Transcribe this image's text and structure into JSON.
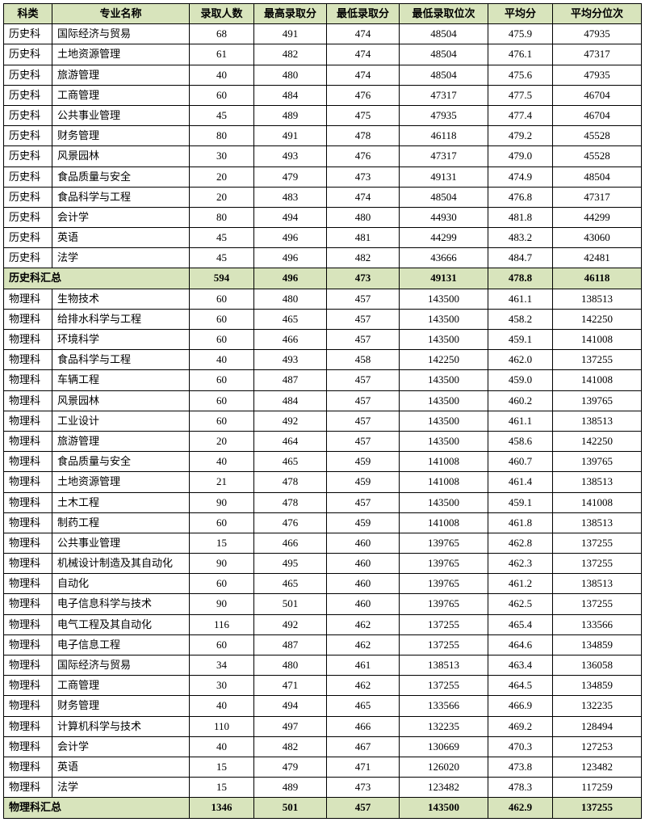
{
  "columns": [
    "科类",
    "专业名称",
    "录取人数",
    "最高录取分",
    "最低录取分",
    "最低录取位次",
    "平均分",
    "平均分位次"
  ],
  "rows": [
    {
      "t": "d",
      "c": [
        "历史科",
        "国际经济与贸易",
        "68",
        "491",
        "474",
        "48504",
        "475.9",
        "47935"
      ]
    },
    {
      "t": "d",
      "c": [
        "历史科",
        "土地资源管理",
        "61",
        "482",
        "474",
        "48504",
        "476.1",
        "47317"
      ]
    },
    {
      "t": "d",
      "c": [
        "历史科",
        "旅游管理",
        "40",
        "480",
        "474",
        "48504",
        "475.6",
        "47935"
      ]
    },
    {
      "t": "d",
      "c": [
        "历史科",
        "工商管理",
        "60",
        "484",
        "476",
        "47317",
        "477.5",
        "46704"
      ]
    },
    {
      "t": "d",
      "c": [
        "历史科",
        "公共事业管理",
        "45",
        "489",
        "475",
        "47935",
        "477.4",
        "46704"
      ]
    },
    {
      "t": "d",
      "c": [
        "历史科",
        "财务管理",
        "80",
        "491",
        "478",
        "46118",
        "479.2",
        "45528"
      ]
    },
    {
      "t": "d",
      "c": [
        "历史科",
        "风景园林",
        "30",
        "493",
        "476",
        "47317",
        "479.0",
        "45528"
      ]
    },
    {
      "t": "d",
      "c": [
        "历史科",
        "食品质量与安全",
        "20",
        "479",
        "473",
        "49131",
        "474.9",
        "48504"
      ]
    },
    {
      "t": "d",
      "c": [
        "历史科",
        "食品科学与工程",
        "20",
        "483",
        "474",
        "48504",
        "476.8",
        "47317"
      ]
    },
    {
      "t": "d",
      "c": [
        "历史科",
        "会计学",
        "80",
        "494",
        "480",
        "44930",
        "481.8",
        "44299"
      ]
    },
    {
      "t": "d",
      "c": [
        "历史科",
        "英语",
        "45",
        "496",
        "481",
        "44299",
        "483.2",
        "43060"
      ]
    },
    {
      "t": "d",
      "c": [
        "历史科",
        "法学",
        "45",
        "496",
        "482",
        "43666",
        "484.7",
        "42481"
      ]
    },
    {
      "t": "s",
      "label": "历史科汇总",
      "c": [
        "594",
        "496",
        "473",
        "49131",
        "478.8",
        "46118"
      ]
    },
    {
      "t": "d",
      "c": [
        "物理科",
        "生物技术",
        "60",
        "480",
        "457",
        "143500",
        "461.1",
        "138513"
      ]
    },
    {
      "t": "d",
      "c": [
        "物理科",
        "给排水科学与工程",
        "60",
        "465",
        "457",
        "143500",
        "458.2",
        "142250"
      ]
    },
    {
      "t": "d",
      "c": [
        "物理科",
        "环境科学",
        "60",
        "466",
        "457",
        "143500",
        "459.1",
        "141008"
      ]
    },
    {
      "t": "d",
      "c": [
        "物理科",
        "食品科学与工程",
        "40",
        "493",
        "458",
        "142250",
        "462.0",
        "137255"
      ]
    },
    {
      "t": "d",
      "c": [
        "物理科",
        "车辆工程",
        "60",
        "487",
        "457",
        "143500",
        "459.0",
        "141008"
      ]
    },
    {
      "t": "d",
      "c": [
        "物理科",
        "风景园林",
        "60",
        "484",
        "457",
        "143500",
        "460.2",
        "139765"
      ]
    },
    {
      "t": "d",
      "c": [
        "物理科",
        "工业设计",
        "60",
        "492",
        "457",
        "143500",
        "461.1",
        "138513"
      ]
    },
    {
      "t": "d",
      "c": [
        "物理科",
        "旅游管理",
        "20",
        "464",
        "457",
        "143500",
        "458.6",
        "142250"
      ]
    },
    {
      "t": "d",
      "c": [
        "物理科",
        "食品质量与安全",
        "40",
        "465",
        "459",
        "141008",
        "460.7",
        "139765"
      ]
    },
    {
      "t": "d",
      "c": [
        "物理科",
        "土地资源管理",
        "21",
        "478",
        "459",
        "141008",
        "461.4",
        "138513"
      ]
    },
    {
      "t": "d",
      "c": [
        "物理科",
        "土木工程",
        "90",
        "478",
        "457",
        "143500",
        "459.1",
        "141008"
      ]
    },
    {
      "t": "d",
      "c": [
        "物理科",
        "制药工程",
        "60",
        "476",
        "459",
        "141008",
        "461.8",
        "138513"
      ]
    },
    {
      "t": "d",
      "c": [
        "物理科",
        "公共事业管理",
        "15",
        "466",
        "460",
        "139765",
        "462.8",
        "137255"
      ]
    },
    {
      "t": "d",
      "c": [
        "物理科",
        "机械设计制造及其自动化",
        "90",
        "495",
        "460",
        "139765",
        "462.3",
        "137255"
      ]
    },
    {
      "t": "d",
      "c": [
        "物理科",
        "自动化",
        "60",
        "465",
        "460",
        "139765",
        "461.2",
        "138513"
      ]
    },
    {
      "t": "d",
      "c": [
        "物理科",
        "电子信息科学与技术",
        "90",
        "501",
        "460",
        "139765",
        "462.5",
        "137255"
      ]
    },
    {
      "t": "d",
      "c": [
        "物理科",
        "电气工程及其自动化",
        "116",
        "492",
        "462",
        "137255",
        "465.4",
        "133566"
      ]
    },
    {
      "t": "d",
      "c": [
        "物理科",
        "电子信息工程",
        "60",
        "487",
        "462",
        "137255",
        "464.6",
        "134859"
      ]
    },
    {
      "t": "d",
      "c": [
        "物理科",
        "国际经济与贸易",
        "34",
        "480",
        "461",
        "138513",
        "463.4",
        "136058"
      ]
    },
    {
      "t": "d",
      "c": [
        "物理科",
        "工商管理",
        "30",
        "471",
        "462",
        "137255",
        "464.5",
        "134859"
      ]
    },
    {
      "t": "d",
      "c": [
        "物理科",
        "财务管理",
        "40",
        "494",
        "465",
        "133566",
        "466.9",
        "132235"
      ]
    },
    {
      "t": "d",
      "c": [
        "物理科",
        "计算机科学与技术",
        "110",
        "497",
        "466",
        "132235",
        "469.2",
        "128494"
      ]
    },
    {
      "t": "d",
      "c": [
        "物理科",
        "会计学",
        "40",
        "482",
        "467",
        "130669",
        "470.3",
        "127253"
      ]
    },
    {
      "t": "d",
      "c": [
        "物理科",
        "英语",
        "15",
        "479",
        "471",
        "126020",
        "473.8",
        "123482"
      ]
    },
    {
      "t": "d",
      "c": [
        "物理科",
        "法学",
        "15",
        "489",
        "473",
        "123482",
        "478.3",
        "117259"
      ]
    },
    {
      "t": "s",
      "label": "物理科汇总",
      "c": [
        "1346",
        "501",
        "457",
        "143500",
        "462.9",
        "137255"
      ]
    }
  ]
}
